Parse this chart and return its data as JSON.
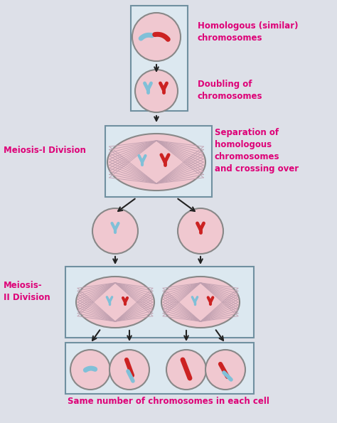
{
  "bg_color": "#dde0e8",
  "cell_fill": "#f0c8d0",
  "cell_edge": "#888888",
  "spindle_color": "#c0a0b0",
  "chr_blue": "#80c0d8",
  "chr_red": "#cc2222",
  "arrow_color": "#222222",
  "box_color": "#7090a0",
  "box_fill": "#dce8f0",
  "text_label_color": "#dd0077",
  "title": "Same number of chromosomes in each cell",
  "label1": "Homologous (similar)\nchromosomes",
  "label2": "Doubling of\nchromosomes",
  "label3": "Separation of\nhomologous\nchromosomes\nand crossing over",
  "label4": "Meiosis-I Division",
  "label5": "Meiosis-\nII Division"
}
